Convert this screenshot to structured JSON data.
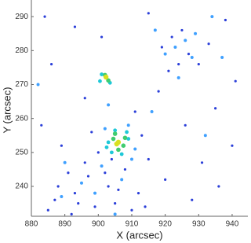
{
  "chart_data": {
    "type": "scatter",
    "x_label": "X (arcsec)",
    "y_label": "Y (arcsec)",
    "xlim": [
      880,
      944.7
    ],
    "ylim": [
      231.2,
      294.9
    ],
    "xticks": [
      880,
      890,
      900,
      910,
      920,
      930,
      940
    ],
    "yticks": [
      240,
      250,
      260,
      270,
      280,
      290
    ],
    "series": [
      {
        "color": "#2b3fd9",
        "x": [
          884,
          893,
          901,
          915,
          938,
          886,
          896,
          911,
          918,
          935,
          941,
          883,
          889,
          897,
          893,
          887,
          899,
          903,
          908,
          912,
          896,
          891,
          885,
          905,
          910,
          915,
          920,
          928,
          936,
          940,
          926,
          931,
          922,
          927,
          930,
          924,
          919,
          925,
          933,
          921,
          898,
          904,
          913,
          900,
          902,
          906,
          894,
          888,
          892,
          914
        ],
        "y": [
          290,
          287,
          284,
          291,
          289,
          276,
          266,
          262,
          268,
          263,
          271,
          258,
          252,
          243,
          238,
          236,
          234,
          240,
          245,
          238,
          247,
          244,
          233,
          235,
          233,
          248,
          242,
          236,
          240,
          252,
          258,
          247,
          284,
          279,
          276,
          276,
          281,
          286,
          282,
          274,
          256,
          248,
          255,
          250,
          244,
          239,
          235,
          240,
          231.8,
          234
        ]
      },
      {
        "color": "#3fa0ff",
        "x": [
          923,
          926,
          928,
          920,
          929,
          924,
          917,
          895,
          899,
          901,
          907,
          889,
          910,
          911,
          902,
          909,
          903,
          882,
          937,
          932,
          905,
          890,
          916,
          934
        ],
        "y": [
          281,
          283,
          278,
          279,
          285,
          272,
          286,
          241,
          238,
          246,
          242,
          237,
          248,
          251,
          257,
          258,
          264,
          270,
          278,
          255,
          231.8,
          247,
          262,
          290
        ]
      },
      {
        "color": "#1ec8d8",
        "x": [
          903,
          909,
          905,
          907,
          901,
          903.5,
          900.5,
          904,
          908.5,
          902.5
        ],
        "y": [
          253,
          254,
          256.5,
          249.5,
          273,
          270.5,
          271,
          250,
          256,
          251.5
        ]
      },
      {
        "color": "#3fcc70",
        "x": [
          904.5,
          907.5,
          906,
          905,
          902,
          903,
          908
        ],
        "y": [
          254,
          252,
          250.8,
          255.5,
          272.8,
          271.2,
          254.3
        ]
      },
      {
        "color": "#d8e020",
        "x": [
          906,
          905.5,
          902.3
        ],
        "y": [
          253,
          252.5,
          272.2
        ]
      }
    ]
  }
}
